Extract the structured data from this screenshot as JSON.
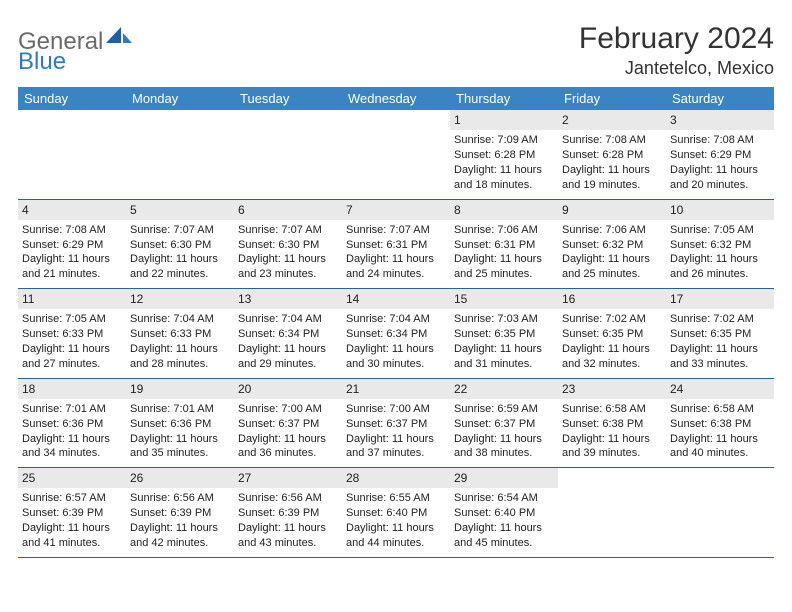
{
  "logo": {
    "general": "General",
    "blue": "Blue"
  },
  "title": "February 2024",
  "location": "Jantetelco, Mexico",
  "colors": {
    "header_bg": "#3b84c4",
    "header_text": "#ffffff",
    "daynum_bg": "#e9e9e9",
    "rule": "#2a618f",
    "body_text": "#222222",
    "logo_gray": "#6a6a6a",
    "logo_blue": "#2f7bc2"
  },
  "weekdays": [
    "Sunday",
    "Monday",
    "Tuesday",
    "Wednesday",
    "Thursday",
    "Friday",
    "Saturday"
  ],
  "layout": {
    "first_weekday_index": 4,
    "days_in_month": 29,
    "columns": 7,
    "rows": 5
  },
  "days": {
    "1": {
      "sunrise": "Sunrise: 7:09 AM",
      "sunset": "Sunset: 6:28 PM",
      "dl1": "Daylight: 11 hours",
      "dl2": "and 18 minutes."
    },
    "2": {
      "sunrise": "Sunrise: 7:08 AM",
      "sunset": "Sunset: 6:28 PM",
      "dl1": "Daylight: 11 hours",
      "dl2": "and 19 minutes."
    },
    "3": {
      "sunrise": "Sunrise: 7:08 AM",
      "sunset": "Sunset: 6:29 PM",
      "dl1": "Daylight: 11 hours",
      "dl2": "and 20 minutes."
    },
    "4": {
      "sunrise": "Sunrise: 7:08 AM",
      "sunset": "Sunset: 6:29 PM",
      "dl1": "Daylight: 11 hours",
      "dl2": "and 21 minutes."
    },
    "5": {
      "sunrise": "Sunrise: 7:07 AM",
      "sunset": "Sunset: 6:30 PM",
      "dl1": "Daylight: 11 hours",
      "dl2": "and 22 minutes."
    },
    "6": {
      "sunrise": "Sunrise: 7:07 AM",
      "sunset": "Sunset: 6:30 PM",
      "dl1": "Daylight: 11 hours",
      "dl2": "and 23 minutes."
    },
    "7": {
      "sunrise": "Sunrise: 7:07 AM",
      "sunset": "Sunset: 6:31 PM",
      "dl1": "Daylight: 11 hours",
      "dl2": "and 24 minutes."
    },
    "8": {
      "sunrise": "Sunrise: 7:06 AM",
      "sunset": "Sunset: 6:31 PM",
      "dl1": "Daylight: 11 hours",
      "dl2": "and 25 minutes."
    },
    "9": {
      "sunrise": "Sunrise: 7:06 AM",
      "sunset": "Sunset: 6:32 PM",
      "dl1": "Daylight: 11 hours",
      "dl2": "and 25 minutes."
    },
    "10": {
      "sunrise": "Sunrise: 7:05 AM",
      "sunset": "Sunset: 6:32 PM",
      "dl1": "Daylight: 11 hours",
      "dl2": "and 26 minutes."
    },
    "11": {
      "sunrise": "Sunrise: 7:05 AM",
      "sunset": "Sunset: 6:33 PM",
      "dl1": "Daylight: 11 hours",
      "dl2": "and 27 minutes."
    },
    "12": {
      "sunrise": "Sunrise: 7:04 AM",
      "sunset": "Sunset: 6:33 PM",
      "dl1": "Daylight: 11 hours",
      "dl2": "and 28 minutes."
    },
    "13": {
      "sunrise": "Sunrise: 7:04 AM",
      "sunset": "Sunset: 6:34 PM",
      "dl1": "Daylight: 11 hours",
      "dl2": "and 29 minutes."
    },
    "14": {
      "sunrise": "Sunrise: 7:04 AM",
      "sunset": "Sunset: 6:34 PM",
      "dl1": "Daylight: 11 hours",
      "dl2": "and 30 minutes."
    },
    "15": {
      "sunrise": "Sunrise: 7:03 AM",
      "sunset": "Sunset: 6:35 PM",
      "dl1": "Daylight: 11 hours",
      "dl2": "and 31 minutes."
    },
    "16": {
      "sunrise": "Sunrise: 7:02 AM",
      "sunset": "Sunset: 6:35 PM",
      "dl1": "Daylight: 11 hours",
      "dl2": "and 32 minutes."
    },
    "17": {
      "sunrise": "Sunrise: 7:02 AM",
      "sunset": "Sunset: 6:35 PM",
      "dl1": "Daylight: 11 hours",
      "dl2": "and 33 minutes."
    },
    "18": {
      "sunrise": "Sunrise: 7:01 AM",
      "sunset": "Sunset: 6:36 PM",
      "dl1": "Daylight: 11 hours",
      "dl2": "and 34 minutes."
    },
    "19": {
      "sunrise": "Sunrise: 7:01 AM",
      "sunset": "Sunset: 6:36 PM",
      "dl1": "Daylight: 11 hours",
      "dl2": "and 35 minutes."
    },
    "20": {
      "sunrise": "Sunrise: 7:00 AM",
      "sunset": "Sunset: 6:37 PM",
      "dl1": "Daylight: 11 hours",
      "dl2": "and 36 minutes."
    },
    "21": {
      "sunrise": "Sunrise: 7:00 AM",
      "sunset": "Sunset: 6:37 PM",
      "dl1": "Daylight: 11 hours",
      "dl2": "and 37 minutes."
    },
    "22": {
      "sunrise": "Sunrise: 6:59 AM",
      "sunset": "Sunset: 6:37 PM",
      "dl1": "Daylight: 11 hours",
      "dl2": "and 38 minutes."
    },
    "23": {
      "sunrise": "Sunrise: 6:58 AM",
      "sunset": "Sunset: 6:38 PM",
      "dl1": "Daylight: 11 hours",
      "dl2": "and 39 minutes."
    },
    "24": {
      "sunrise": "Sunrise: 6:58 AM",
      "sunset": "Sunset: 6:38 PM",
      "dl1": "Daylight: 11 hours",
      "dl2": "and 40 minutes."
    },
    "25": {
      "sunrise": "Sunrise: 6:57 AM",
      "sunset": "Sunset: 6:39 PM",
      "dl1": "Daylight: 11 hours",
      "dl2": "and 41 minutes."
    },
    "26": {
      "sunrise": "Sunrise: 6:56 AM",
      "sunset": "Sunset: 6:39 PM",
      "dl1": "Daylight: 11 hours",
      "dl2": "and 42 minutes."
    },
    "27": {
      "sunrise": "Sunrise: 6:56 AM",
      "sunset": "Sunset: 6:39 PM",
      "dl1": "Daylight: 11 hours",
      "dl2": "and 43 minutes."
    },
    "28": {
      "sunrise": "Sunrise: 6:55 AM",
      "sunset": "Sunset: 6:40 PM",
      "dl1": "Daylight: 11 hours",
      "dl2": "and 44 minutes."
    },
    "29": {
      "sunrise": "Sunrise: 6:54 AM",
      "sunset": "Sunset: 6:40 PM",
      "dl1": "Daylight: 11 hours",
      "dl2": "and 45 minutes."
    }
  }
}
